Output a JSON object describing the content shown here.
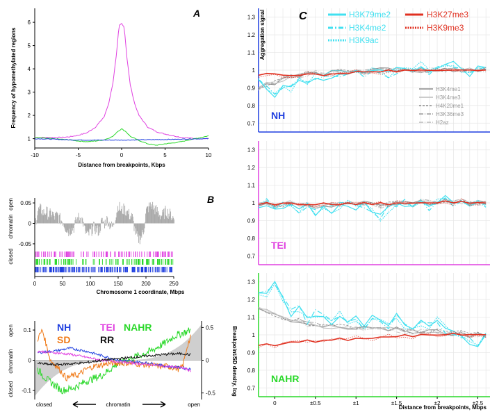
{
  "colors": {
    "nh": "#1f3fe0",
    "tei": "#e040e0",
    "nahr": "#28d828",
    "sd": "#f07a18",
    "rr": "#111111",
    "gray": "#aaaaaa",
    "cyan": "#40e0f0",
    "red": "#e03020",
    "black": "#000000"
  },
  "chart_data": [
    {
      "id": "A",
      "panel_label": "A",
      "type": "line",
      "xlabel": "Distance from breakpoints, Kbps",
      "ylabel": "Frequency of hypomethylated regions",
      "xlim": [
        -10,
        10
      ],
      "ylim": [
        0.6,
        6.6
      ],
      "xticks": [
        -10,
        -5,
        0,
        5,
        10
      ],
      "yticks": [
        1,
        2,
        3,
        4,
        5,
        6
      ],
      "series": [
        {
          "color": "tei",
          "x": [
            -10,
            -9,
            -8,
            -7,
            -6,
            -5,
            -4,
            -3,
            -2,
            -1.5,
            -1,
            -0.6,
            -0.3,
            0,
            0.3,
            0.6,
            1,
            1.5,
            2,
            3,
            4,
            5,
            6,
            7,
            8,
            9,
            10
          ],
          "y": [
            1.05,
            1.05,
            1.05,
            1.05,
            1.08,
            1.15,
            1.25,
            1.5,
            1.95,
            2.5,
            3.4,
            4.6,
            5.85,
            5.95,
            5.8,
            4.5,
            3.3,
            2.5,
            2.0,
            1.5,
            1.3,
            1.2,
            1.12,
            1.05,
            1.02,
            1.0,
            1.0
          ]
        },
        {
          "color": "nahr",
          "x": [
            -10,
            -8,
            -6,
            -5,
            -4,
            -3,
            -2,
            -1,
            -0.5,
            0,
            0.5,
            1,
            2,
            3,
            4,
            5,
            6,
            7,
            8,
            9,
            10
          ],
          "y": [
            1.05,
            1.0,
            0.95,
            0.9,
            0.87,
            0.9,
            0.95,
            1.1,
            1.3,
            1.42,
            1.3,
            1.1,
            0.92,
            0.78,
            0.72,
            0.78,
            0.82,
            0.88,
            0.97,
            1.04,
            1.12
          ]
        },
        {
          "color": "nh",
          "x": [
            -10,
            -8,
            -6,
            -4,
            -2,
            0,
            2,
            4,
            6,
            8,
            10
          ],
          "y": [
            1.0,
            0.98,
            0.95,
            0.94,
            0.94,
            0.94,
            0.95,
            0.96,
            0.97,
            0.99,
            1.0
          ]
        }
      ]
    },
    {
      "id": "B",
      "panel_label": "B",
      "type": "area",
      "xlabel": "Chromosome 1 coordinate, Mbps",
      "ylabel_top": "open",
      "ylabel_mid": "chromatin",
      "ylabel_bottom": "closed",
      "xlim": [
        0,
        250
      ],
      "ylim": [
        -0.062,
        0.062
      ],
      "xticks": [
        0,
        50,
        100,
        150,
        200,
        250
      ],
      "ytick_labels": [
        "0.05",
        "0",
        "-0.05"
      ],
      "yticks": [
        0.05,
        0,
        -0.05
      ],
      "profile_x": [
        0,
        5,
        10,
        15,
        20,
        25,
        30,
        35,
        40,
        45,
        50,
        55,
        60,
        65,
        70,
        75,
        80,
        85,
        90,
        95,
        100,
        105,
        110,
        115,
        120,
        125,
        130,
        135,
        140,
        145,
        150,
        155,
        160,
        165,
        170,
        175,
        180,
        185,
        190,
        195,
        200,
        205,
        210,
        215,
        220,
        225,
        230,
        235,
        240,
        245,
        250
      ],
      "profile_y": [
        0.0,
        0.03,
        0.035,
        0.025,
        0.03,
        0.02,
        0.025,
        0.015,
        0.02,
        0.01,
        0.005,
        -0.01,
        -0.02,
        -0.015,
        -0.01,
        0.01,
        0.015,
        0.01,
        -0.02,
        -0.03,
        -0.02,
        -0.01,
        -0.015,
        -0.02,
        0.005,
        0.0,
        0.01,
        -0.005,
        -0.01,
        0.02,
        0.045,
        0.03,
        0.035,
        0.03,
        0.02,
        0.015,
        -0.02,
        -0.04,
        -0.035,
        -0.02,
        0.03,
        0.04,
        0.045,
        0.035,
        0.03,
        0.02,
        0.02,
        0.03,
        0.025,
        0.02,
        0.01
      ],
      "track_colors": [
        "tei",
        "nahr",
        "nh"
      ]
    },
    {
      "id": "bottom",
      "type": "line",
      "legend": [
        {
          "label": "NH",
          "color": "nh"
        },
        {
          "label": "TEI",
          "color": "tei"
        },
        {
          "label": "NAHR",
          "color": "nahr"
        },
        {
          "label": "SD",
          "color": "sd"
        },
        {
          "label": "RR",
          "color": "rr"
        }
      ],
      "ylabel_top": "open",
      "ylabel_mid": "chromatin",
      "ylabel_bottom": "closed",
      "ylabel_right": "Breakpoint/SD density, log",
      "xlabel_left": "closed",
      "xlabel_mid": "chromatin",
      "xlabel_right": "open",
      "xlim": [
        0,
        100
      ],
      "ylim_left": [
        -0.13,
        0.13
      ],
      "yticks_left": [
        0.1,
        0,
        -0.1
      ],
      "ytick_labels_left": [
        "0.1",
        "0",
        "-0.1"
      ],
      "ylim_right": [
        -0.6,
        0.6
      ],
      "yticks_right": [
        0.5,
        0,
        -0.5
      ],
      "ytick_labels_right": [
        "0.5",
        "0",
        "-0.5"
      ],
      "series": [
        {
          "name": "NAHR",
          "color": "nahr",
          "x": [
            0,
            5,
            10,
            15,
            20,
            25,
            30,
            35,
            40,
            45,
            50,
            55,
            60,
            65,
            70,
            75,
            80,
            85,
            90,
            95
          ],
          "y": [
            -0.03,
            -0.06,
            -0.08,
            -0.1,
            -0.095,
            -0.085,
            -0.07,
            -0.06,
            -0.05,
            -0.03,
            -0.01,
            0.0,
            0.01,
            0.02,
            0.03,
            0.045,
            0.06,
            0.08,
            0.09,
            0.1
          ]
        },
        {
          "name": "SD",
          "color": "sd",
          "x": [
            0,
            3,
            5,
            8,
            12,
            15,
            18,
            22,
            25,
            30,
            35,
            40,
            45,
            50,
            55,
            60,
            65,
            70,
            75,
            80,
            85,
            88,
            90,
            93,
            95
          ],
          "y": [
            0.07,
            0.1,
            0.06,
            0.0,
            -0.02,
            -0.04,
            -0.06,
            -0.05,
            -0.05,
            -0.03,
            -0.02,
            -0.015,
            -0.01,
            -0.01,
            -0.01,
            -0.01,
            -0.015,
            -0.015,
            -0.02,
            -0.02,
            -0.025,
            -0.03,
            -0.02,
            0.05,
            0.075
          ]
        },
        {
          "name": "NH",
          "color": "nh",
          "x": [
            0,
            10,
            20,
            30,
            40,
            50,
            60,
            70,
            80,
            90,
            95
          ],
          "y": [
            0.025,
            0.03,
            0.04,
            0.03,
            0.015,
            0.0,
            -0.005,
            -0.01,
            -0.02,
            -0.025,
            -0.03
          ]
        },
        {
          "name": "TEI",
          "color": "tei",
          "x": [
            0,
            10,
            20,
            30,
            40,
            50,
            60,
            70,
            80,
            90,
            95
          ],
          "y": [
            0.03,
            0.025,
            0.02,
            0.01,
            0.0,
            -0.005,
            -0.01,
            -0.015,
            -0.02,
            -0.025,
            -0.035
          ]
        },
        {
          "name": "RR",
          "color": "rr",
          "x": [
            0,
            10,
            20,
            30,
            40,
            50,
            60,
            70,
            80,
            90,
            95
          ],
          "y": [
            -0.01,
            -0.015,
            -0.012,
            -0.008,
            0.0,
            0.005,
            0.01,
            0.015,
            0.02,
            0.022,
            0.018
          ]
        }
      ]
    },
    {
      "id": "C",
      "panel_label": "C",
      "type": "line",
      "ylabel": "Aggregation signal",
      "xlabel": "Distance from breakpoints, Mbps",
      "xlim": [
        -0.2,
        2.65
      ],
      "xticks": [
        0,
        0.5,
        1,
        1.5,
        2,
        2.5
      ],
      "xtick_labels": [
        "0",
        "±0.5",
        "±1",
        "±1.5",
        "±2",
        "±2.5"
      ],
      "ylim": [
        0.65,
        1.35
      ],
      "yticks": [
        0.7,
        0.8,
        0.9,
        1,
        1.1,
        1.2,
        1.3
      ],
      "ytick_labels": [
        "0.7",
        "0.8",
        "0.9",
        "1",
        "1.1",
        "1.2",
        "1.3"
      ],
      "legend_main": [
        {
          "label": "H3K79me2",
          "color": "cyan",
          "dash": "solid"
        },
        {
          "label": "H3K27me3",
          "color": "red",
          "dash": "solid"
        },
        {
          "label": "H3K4me2",
          "color": "cyan",
          "dash": "dashdot"
        },
        {
          "label": "H3K9me3",
          "color": "red",
          "dash": "dot"
        },
        {
          "label": "H3K9ac",
          "color": "cyan",
          "dash": "dot"
        }
      ],
      "legend_gray": [
        {
          "label": "H3K4me1",
          "dash": "solid",
          "shade": "#888888"
        },
        {
          "label": "H3K4me3",
          "dash": "solid",
          "shade": "#bbbbbb"
        },
        {
          "label": "H4K20me1",
          "dash": "dash",
          "shade": "#888888"
        },
        {
          "label": "H3K36me3",
          "dash": "dashdot",
          "shade": "#999999"
        },
        {
          "label": "H2az",
          "dash": "dashdot",
          "shade": "#bbbbbb"
        }
      ],
      "x": [
        -0.2,
        -0.1,
        0,
        0.1,
        0.2,
        0.3,
        0.4,
        0.5,
        0.6,
        0.7,
        0.8,
        0.9,
        1.0,
        1.1,
        1.2,
        1.3,
        1.4,
        1.5,
        1.6,
        1.7,
        1.8,
        1.9,
        2.0,
        2.1,
        2.2,
        2.3,
        2.4,
        2.5,
        2.6
      ],
      "subpanels": [
        {
          "name": "NH",
          "color": "nh",
          "cyan": [
            0.95,
            0.9,
            0.86,
            0.92,
            0.9,
            0.96,
            0.93,
            0.97,
            0.96,
            0.98,
            0.98,
            0.97,
            0.99,
            0.97,
            1.02,
            1.0,
            0.98,
            1.0,
            1.02,
            0.99,
            1.03,
            1.0,
            1.0,
            1.01,
            1.03,
            1.0,
            0.98,
            1.02,
            1.0
          ],
          "gray": [
            0.9,
            0.92,
            0.93,
            0.95,
            0.96,
            0.97,
            0.98,
            0.99,
            0.97,
            0.99,
            1.0,
            0.99,
            1.0,
            0.99,
            1.0,
            1.0,
            1.0,
            1.0,
            1.0,
            1.0,
            1.0,
            1.0,
            1.0,
            1.0,
            1.0,
            1.0,
            1.0,
            1.0,
            1.0
          ],
          "red": [
            0.97,
            0.98,
            0.98,
            0.97,
            0.97,
            0.97,
            0.98,
            0.98,
            0.97,
            0.98,
            0.98,
            0.98,
            0.99,
            0.99,
            0.99,
            0.99,
            1.0,
            0.99,
            1.0,
            1.0,
            1.0,
            1.0,
            1.0,
            1.0,
            1.0,
            1.0,
            1.0,
            1.0,
            1.0
          ]
        },
        {
          "name": "TEI",
          "color": "tei",
          "cyan": [
            0.98,
            1.0,
            0.96,
            0.99,
            1.0,
            0.96,
            0.98,
            0.95,
            0.99,
            0.96,
            0.98,
            1.0,
            0.97,
            0.99,
            0.95,
            0.92,
            0.97,
            0.99,
            1.0,
            0.97,
            1.02,
            0.98,
            1.0,
            1.03,
            1.0,
            1.02,
            0.99,
            1.0,
            0.99
          ],
          "gray": [
            0.99,
            1.0,
            0.98,
            0.99,
            1.0,
            0.98,
            0.99,
            0.98,
            0.99,
            0.99,
            0.99,
            1.0,
            0.99,
            1.0,
            0.99,
            0.98,
            0.99,
            1.0,
            1.0,
            0.99,
            1.01,
            1.0,
            1.0,
            1.01,
            1.0,
            1.01,
            1.0,
            1.0,
            1.0
          ],
          "red": [
            0.99,
            1.0,
            0.99,
            1.0,
            1.0,
            0.99,
            0.99,
            0.99,
            1.0,
            0.99,
            0.99,
            1.0,
            0.99,
            1.0,
            0.99,
            1.0,
            0.99,
            1.0,
            1.0,
            1.0,
            1.0,
            1.0,
            1.0,
            1.01,
            1.0,
            1.01,
            1.0,
            1.0,
            1.0
          ]
        },
        {
          "name": "NAHR",
          "color": "nahr",
          "cyan": [
            1.25,
            1.23,
            1.28,
            1.2,
            1.12,
            1.15,
            1.08,
            1.12,
            1.1,
            1.08,
            1.12,
            1.06,
            1.09,
            1.05,
            1.1,
            1.08,
            1.05,
            1.1,
            1.05,
            1.02,
            1.07,
            1.05,
            1.08,
            1.03,
            1.02,
            1.0,
            0.97,
            0.95,
            1.0
          ],
          "gray": [
            1.15,
            1.14,
            1.12,
            1.1,
            1.08,
            1.08,
            1.06,
            1.06,
            1.05,
            1.05,
            1.05,
            1.04,
            1.04,
            1.04,
            1.03,
            1.03,
            1.03,
            1.03,
            1.02,
            1.02,
            1.02,
            1.02,
            1.02,
            1.01,
            1.01,
            1.01,
            1.0,
            1.0,
            1.0
          ],
          "red": [
            0.94,
            0.95,
            0.94,
            0.95,
            0.96,
            0.96,
            0.97,
            0.96,
            0.97,
            0.97,
            0.98,
            0.97,
            0.98,
            0.98,
            0.98,
            0.99,
            0.99,
            0.99,
            1.0,
            0.99,
            1.0,
            1.0,
            1.0,
            1.0,
            1.01,
            1.0,
            1.0,
            1.0,
            1.0
          ]
        }
      ]
    }
  ]
}
